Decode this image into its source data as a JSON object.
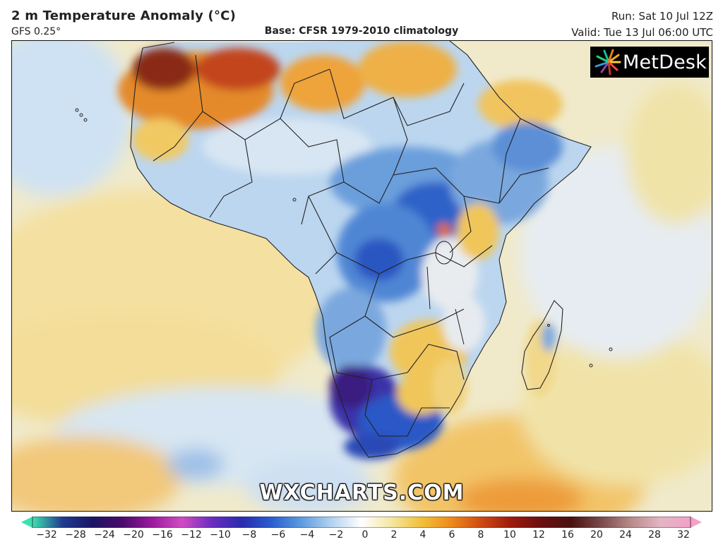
{
  "header": {
    "title": "2 m Temperature Anomaly (°C)",
    "model": "GFS 0.25°",
    "base": "Base: CFSR 1979-2010 climatology",
    "run": "Run: Sat 10 Jul 12Z",
    "valid": "Valid: Tue 13 Jul 06:00 UTC"
  },
  "logo": {
    "text": "MetDesk"
  },
  "watermark": "WXCHARTS.COM",
  "colorbar": {
    "labels": [
      "−32",
      "−28",
      "−24",
      "−20",
      "−16",
      "−12",
      "−10",
      "−8",
      "−6",
      "−4",
      "−2",
      "0",
      "2",
      "4",
      "6",
      "8",
      "10",
      "12",
      "16",
      "20",
      "24",
      "28",
      "32"
    ],
    "colors": [
      "#3fe0b0",
      "#1f3c8f",
      "#1b1466",
      "#4a0b6b",
      "#9b1a9e",
      "#d24bc4",
      "#6a2dbf",
      "#2a2bb0",
      "#2a5fd0",
      "#5d9ce0",
      "#b3d2ef",
      "#ffffff",
      "#f5e6a0",
      "#f2c03a",
      "#ee8a1a",
      "#cf4a12",
      "#9e1a0e",
      "#6b0f10",
      "#4a1010",
      "#7a4a4a",
      "#b88a8a",
      "#e3b6c4",
      "#f4a0c8"
    ]
  },
  "map": {
    "palette": {
      "ocean_warm": "#f4e3a6",
      "ocean_neutral": "#eef0ee",
      "ocean_cool": "#cfe2f3",
      "land_cool": "#6fa3dd",
      "land_cold": "#2d5ec9",
      "land_very_cold": "#3a2690",
      "land_hot": "#d86a1b",
      "land_very_hot": "#7e2417",
      "borders": "#222222"
    }
  }
}
